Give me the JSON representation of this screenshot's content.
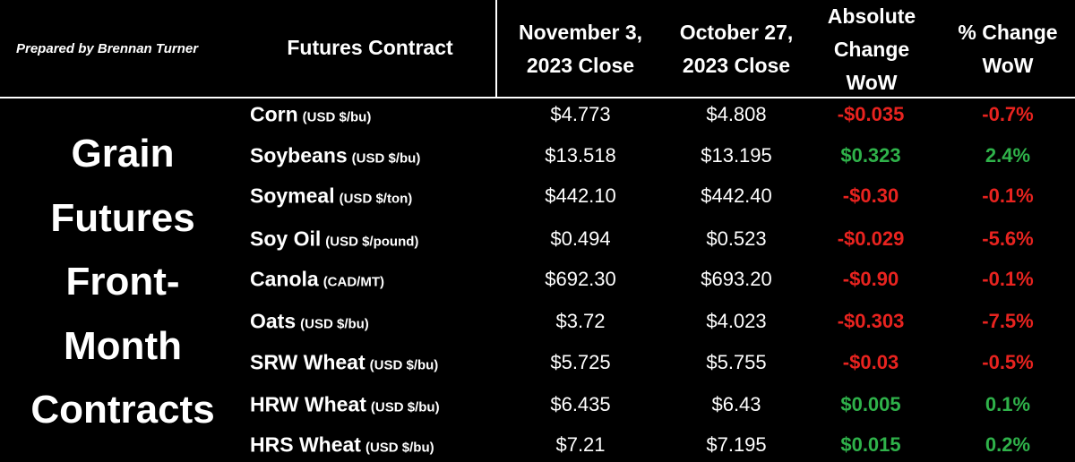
{
  "note": "Prepared by Brennan Turner",
  "title": [
    "Grain",
    "Futures",
    "Front-",
    "Month",
    "Contracts"
  ],
  "header": {
    "columns": [
      [
        "Futures Contract"
      ],
      [
        "November 3,",
        "2023 Close"
      ],
      [
        "October 27,",
        "2023 Close"
      ],
      [
        "Absolute",
        "Change",
        "WoW"
      ],
      [
        "% Change",
        "WoW"
      ]
    ]
  },
  "table": {
    "rows": [
      [
        "Corn",
        "(USD $/bu)",
        "$4.773",
        "$4.808",
        "-$0.035",
        "-0.7%"
      ],
      [
        "Soybeans",
        "(USD $/bu)",
        "$13.518",
        "$13.195",
        "$0.323",
        "2.4%"
      ],
      [
        "Soymeal",
        "(USD $/ton)",
        "$442.10",
        "$442.40",
        "-$0.30",
        "-0.1%"
      ],
      [
        "Soy Oil",
        "(USD $/pound)",
        "$0.494",
        "$0.523",
        "-$0.029",
        "-5.6%"
      ],
      [
        "Canola",
        "(CAD/MT)",
        "$692.30",
        "$693.20",
        "-$0.90",
        "-0.1%"
      ],
      [
        "Oats",
        "(USD $/bu)",
        "$3.72",
        "$4.023",
        "-$0.303",
        "-7.5%"
      ],
      [
        "SRW Wheat",
        "(USD $/bu)",
        "$5.725",
        "$5.755",
        "-$0.03",
        "-0.5%"
      ],
      [
        "HRW Wheat",
        "(USD $/bu)",
        "$6.435",
        "$6.43",
        "$0.005",
        "0.1%"
      ],
      [
        "HRS Wheat",
        "(USD $/bu)",
        "$7.21",
        "$7.195",
        "$0.015",
        "0.2%"
      ]
    ]
  }
}
